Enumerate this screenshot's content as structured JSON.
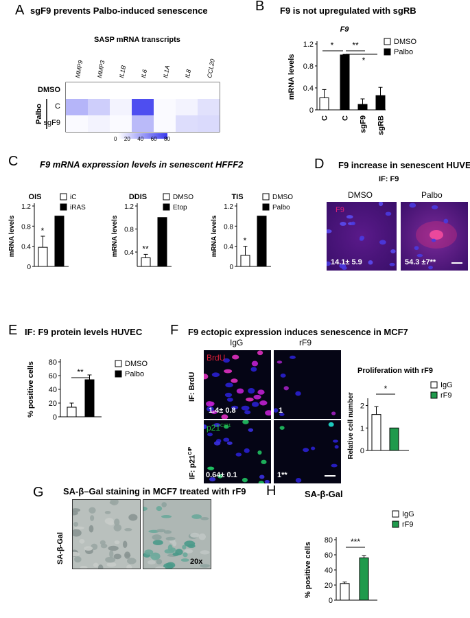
{
  "panels": {
    "A": {
      "letter": "A",
      "title": "sgF9 prevents Palbo-induced senescence",
      "subtitle": "SASP mRNA transcripts",
      "genes": [
        "MMP9",
        "MMP3",
        "IL1B",
        "IL6",
        "IL1A",
        "IL8",
        "CCL20"
      ],
      "rows": [
        "DMSO",
        "C",
        "sgF9"
      ],
      "group_label": "Palbo",
      "heatmap": [
        [
          0,
          0,
          0,
          0,
          0,
          0,
          0
        ],
        [
          30,
          20,
          5,
          72,
          2,
          5,
          12
        ],
        [
          2,
          5,
          2,
          28,
          2,
          14,
          15
        ]
      ],
      "scale_ticks": [
        "0",
        "20",
        "40",
        "60",
        "80"
      ]
    },
    "B": {
      "letter": "B",
      "title": "F9 is not upregulated with sgRB",
      "chart_title": "F9",
      "ylabel": "mRNA levels",
      "legend": [
        "DMSO",
        "Palbo"
      ],
      "categories": [
        "C",
        "C",
        "sgF9",
        "sgRB"
      ],
      "yticks": [
        "0",
        "0.4",
        "0.8",
        "1.2"
      ],
      "sig": [
        "*",
        "**",
        "*"
      ]
    },
    "C": {
      "letter": "C",
      "title": "F9 mRNA expression levels in senescent HFFF2",
      "title_italic": "F9",
      "subcharts": [
        {
          "name": "OIS",
          "legend": [
            "iC",
            "iRAS"
          ],
          "yticks": [
            "0",
            "0.4",
            "0.8",
            "1.2"
          ],
          "sig": "*"
        },
        {
          "name": "DDIS",
          "legend": [
            "DMSO",
            "Etop"
          ],
          "yticks": [
            "0.4",
            "0.8",
            "1.2"
          ],
          "sig": "**"
        },
        {
          "name": "TIS",
          "legend": [
            "DMSO",
            "Palbo"
          ],
          "yticks": [
            "0",
            "0.4",
            "0.8",
            "1.2"
          ],
          "sig": "*"
        }
      ],
      "ylabel": "mRNA levels"
    },
    "D": {
      "letter": "D",
      "title": "F9 increase in senescent HUVEC",
      "subtitle": "IF: F9",
      "col1": "DMSO",
      "col2": "Palbo",
      "stain": "F9",
      "val1": "14.1± 5.9",
      "val2": "54.3 ±7**"
    },
    "E": {
      "letter": "E",
      "title": "IF: F9 protein levels HUVEC",
      "ylabel": "% positive cells",
      "legend": [
        "DMSO",
        "Palbo"
      ],
      "yticks": [
        "0",
        "20",
        "40",
        "60",
        "80"
      ],
      "sig": "**"
    },
    "F": {
      "letter": "F",
      "title": "F9 ectopic expression induces senescence in MCF7",
      "col1": "IgG",
      "col2": "rF9",
      "row1": "IF: BrdU",
      "row2_main": "IF: p21",
      "row2_sup": "CIP",
      "stain1": "BrdU",
      "stain2_main": "p21",
      "stain2_sup": "CIP1",
      "v11": "1.4± 0.8",
      "v12": "1",
      "v21": "0.64± 0.1",
      "v22": "1**",
      "chart_title": "Proliferation with rF9",
      "ylabel": "Relative cell number",
      "legend": [
        "IgG",
        "rF9"
      ],
      "yticks": [
        "0",
        "1",
        "2"
      ],
      "sig": "*"
    },
    "G": {
      "letter": "G",
      "title": "SA-β–Gal staining in MCF7 treated with rF9",
      "rowlabel": "SA-β-Gal",
      "mag": "20x"
    },
    "H": {
      "letter": "H",
      "title": "SA-β-Gal",
      "ylabel": "% positive cells",
      "legend": [
        "IgG",
        "rF9"
      ],
      "yticks": [
        "0",
        "20",
        "40",
        "60",
        "80"
      ],
      "sig": "***"
    }
  },
  "chart_data": [
    {
      "type": "bar",
      "panel": "B",
      "title": "F9",
      "ylabel": "mRNA levels",
      "categories": [
        "C",
        "C",
        "sgF9",
        "sgRB"
      ],
      "values": [
        0.22,
        1.0,
        0.1,
        0.26
      ],
      "errors": [
        0.15,
        0.01,
        0.1,
        0.15
      ],
      "fill": [
        "white",
        "black",
        "black",
        "black"
      ],
      "ylim": [
        0,
        1.2
      ],
      "series": [
        {
          "name": "DMSO"
        },
        {
          "name": "Palbo"
        }
      ]
    },
    {
      "type": "bar",
      "panel": "C",
      "title": "OIS",
      "ylabel": "mRNA levels",
      "categories": [
        "iC",
        "iRAS"
      ],
      "values": [
        0.38,
        1.0
      ],
      "errors": [
        0.22,
        0
      ],
      "ylim": [
        0,
        1.2
      ]
    },
    {
      "type": "bar",
      "panel": "C",
      "title": "DDIS",
      "ylabel": "mRNA levels",
      "categories": [
        "DMSO",
        "Etop"
      ],
      "values": [
        0.3,
        1.0
      ],
      "errors": [
        0.06,
        0
      ],
      "ylim": [
        0.4,
        1.2
      ]
    },
    {
      "type": "bar",
      "panel": "C",
      "title": "TIS",
      "ylabel": "mRNA levels",
      "categories": [
        "DMSO",
        "Palbo"
      ],
      "values": [
        0.22,
        1.0
      ],
      "errors": [
        0.18,
        0
      ],
      "ylim": [
        0,
        1.2
      ]
    },
    {
      "type": "bar",
      "panel": "E",
      "ylabel": "% positive cells",
      "categories": [
        "DMSO",
        "Palbo"
      ],
      "values": [
        14,
        54
      ],
      "errors": [
        6,
        7
      ],
      "ylim": [
        0,
        80
      ]
    },
    {
      "type": "bar",
      "panel": "F",
      "title": "Proliferation with rF9",
      "ylabel": "Relative cell number",
      "categories": [
        "IgG",
        "rF9"
      ],
      "values": [
        1.6,
        1.0
      ],
      "errors": [
        0.35,
        0
      ],
      "ylim": [
        0,
        2
      ]
    },
    {
      "type": "bar",
      "panel": "H",
      "title": "SA-β-Gal",
      "ylabel": "% positive cells",
      "categories": [
        "IgG",
        "rF9"
      ],
      "values": [
        22,
        56
      ],
      "errors": [
        2,
        3
      ],
      "ylim": [
        0,
        80
      ]
    }
  ],
  "colors": {
    "heat": "#3a3aee",
    "green": "#1f9a4c",
    "magenta": "#e0207a",
    "blue": "#2a2aa0"
  }
}
